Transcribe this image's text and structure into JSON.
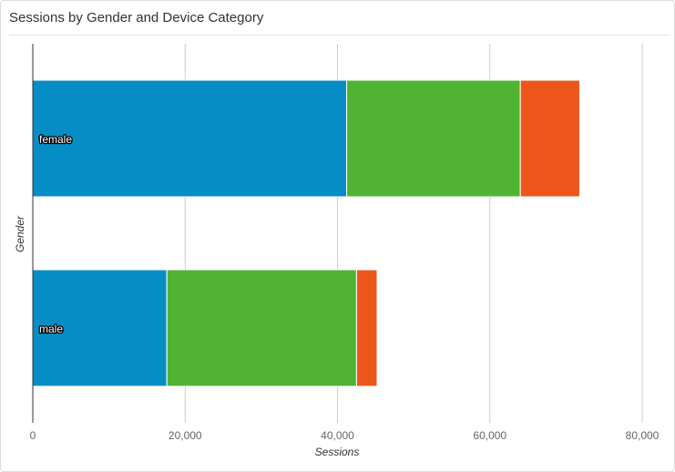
{
  "panel": {
    "title": "Sessions by Gender and Device Category"
  },
  "colors": {
    "desktop": "#078dc6",
    "mobile": "#50b432",
    "tablet": "#ed561b",
    "grid": "#cccccc",
    "axis": "#333333"
  },
  "chart_data": {
    "type": "bar",
    "orientation": "horizontal",
    "stacked": true,
    "categories": [
      "female",
      "male"
    ],
    "series": [
      {
        "color": "#078dc6",
        "values": [
          41200,
          17600
        ]
      },
      {
        "color": "#50b432",
        "values": [
          22800,
          24900
        ]
      },
      {
        "color": "#ed561b",
        "values": [
          7800,
          2700
        ]
      }
    ],
    "xlabel": "Sessions",
    "ylabel": "Gender",
    "xlim": [
      0,
      80000
    ],
    "xticks": [
      0,
      20000,
      40000,
      60000,
      80000
    ],
    "xtick_labels": [
      "0",
      "20,000",
      "40,000",
      "60,000",
      "80,000"
    ],
    "grid": true,
    "legend": "none"
  }
}
